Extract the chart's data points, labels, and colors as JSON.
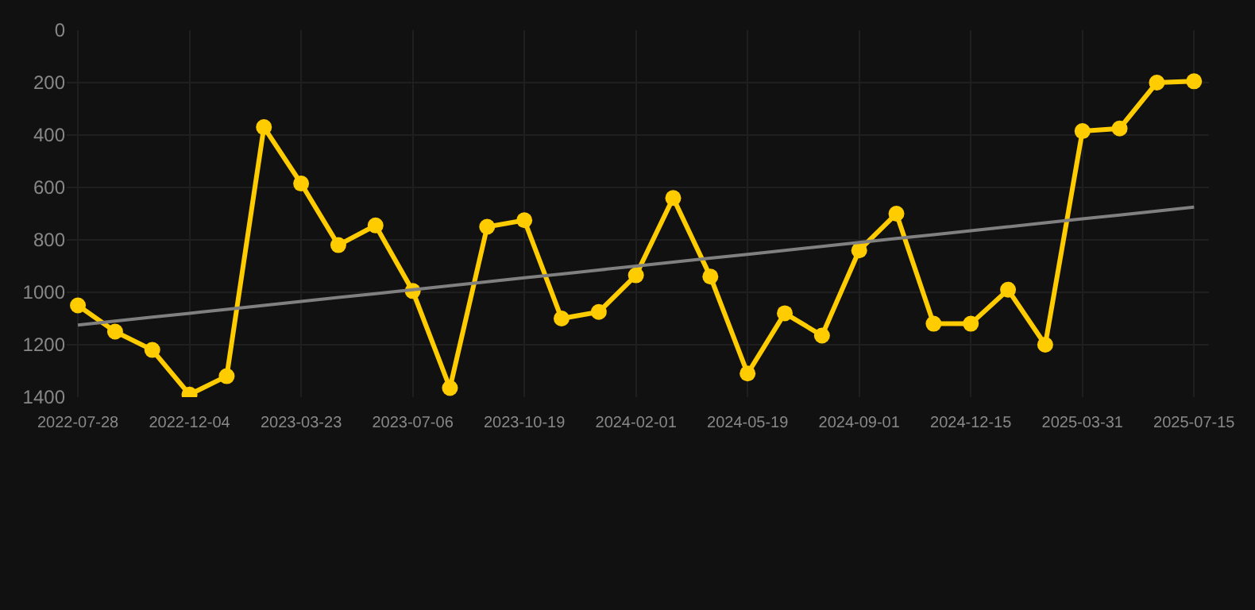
{
  "chart_data": {
    "type": "line",
    "categories": [
      "2022-07-28",
      null,
      null,
      "2022-12-04",
      null,
      null,
      "2023-03-23",
      null,
      null,
      "2023-07-06",
      null,
      null,
      "2023-10-19",
      null,
      null,
      "2024-02-01",
      null,
      null,
      "2024-05-19",
      null,
      null,
      "2024-09-01",
      null,
      null,
      "2024-12-15",
      null,
      null,
      "2025-03-31",
      null,
      null,
      "2025-07-15"
    ],
    "series": [
      {
        "color": "#ffcc00",
        "marker": "circle",
        "values": [
          1050,
          1150,
          1220,
          1390,
          1320,
          370,
          585,
          820,
          745,
          995,
          1365,
          750,
          725,
          1100,
          1075,
          935,
          640,
          940,
          1310,
          1080,
          1165,
          840,
          700,
          1120,
          1120,
          990,
          1200,
          385,
          375,
          200,
          195
        ]
      },
      {
        "color": "#808080",
        "marker": "none",
        "values": [
          1125,
          1110,
          1095,
          1080,
          1065,
          1050,
          1035,
          1020,
          1005,
          990,
          975,
          960,
          945,
          930,
          915,
          900,
          885,
          870,
          855,
          840,
          825,
          810,
          795,
          780,
          765,
          750,
          735,
          720,
          705,
          690,
          675
        ]
      }
    ],
    "ylim": [
      1400,
      0
    ],
    "yticks": [
      0,
      200,
      400,
      600,
      800,
      1000,
      1200,
      1400
    ],
    "grid": true,
    "line_style": "solid"
  }
}
